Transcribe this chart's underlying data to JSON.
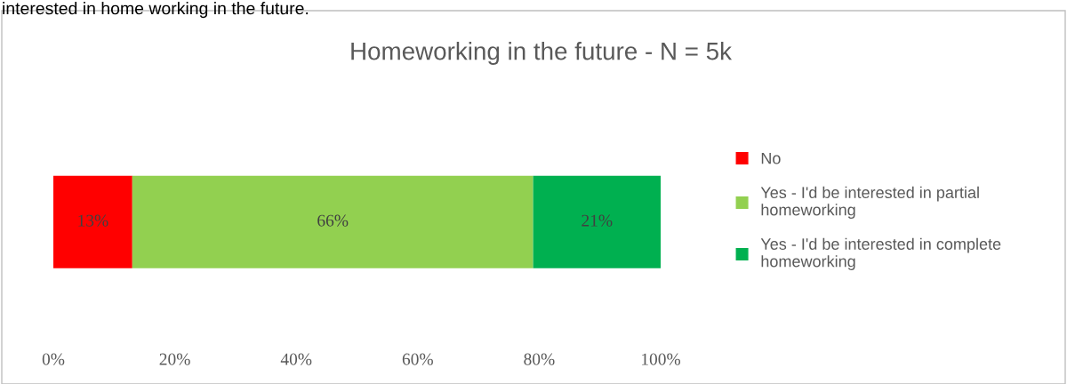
{
  "chart_data": {
    "type": "bar",
    "orientation": "horizontal",
    "stacked": true,
    "title": "Homeworking in the future - N = 5k",
    "annotations": [
      "interested in home working in the future."
    ],
    "categories": [
      null
    ],
    "series": [
      {
        "name": "No",
        "color": "#ff0000",
        "values": [
          13
        ],
        "value_labels": [
          "13%"
        ]
      },
      {
        "name": "Yes - I'd be interested in partial homeworking",
        "color": "#92d050",
        "values": [
          66
        ],
        "value_labels": [
          "66%"
        ]
      },
      {
        "name": "Yes - I'd be interested in complete homeworking",
        "color": "#00b050",
        "values": [
          21
        ],
        "value_labels": [
          "21%"
        ]
      }
    ],
    "xlim": [
      0,
      100
    ],
    "xticks": [
      {
        "value": 0,
        "label": "0%"
      },
      {
        "value": 20,
        "label": "20%"
      },
      {
        "value": 40,
        "label": "40%"
      },
      {
        "value": 60,
        "label": "60%"
      },
      {
        "value": 80,
        "label": "80%"
      },
      {
        "value": 100,
        "label": "100%"
      }
    ],
    "grid": false,
    "legend": "right"
  }
}
